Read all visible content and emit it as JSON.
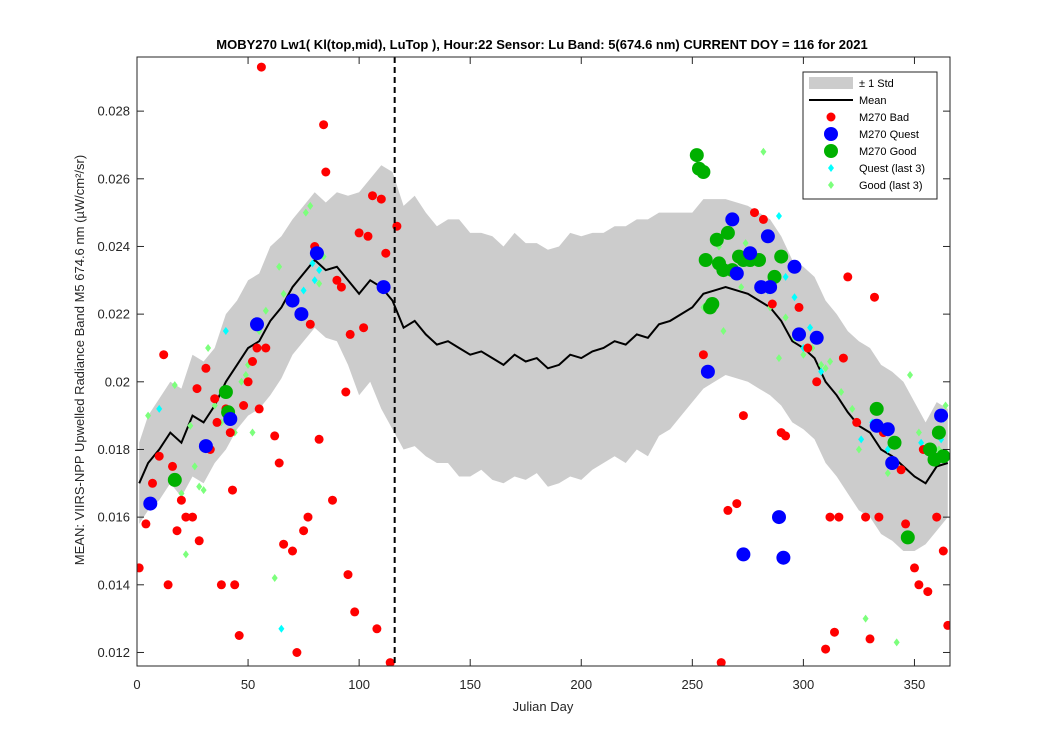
{
  "chart_data": {
    "type": "scatter",
    "title": "MOBY270   Lw1( Kl(top,mid), LuTop ),   Hour:22 Sensor: Lu Band: 5(674.6 nm)   CURRENT DOY = 116 for 2021",
    "xlabel": "Julian Day",
    "ylabel": "MEAN: VIIRS-NPP Upwelled Radiance Band M5 674.6 nm (µW/cm²/sr)",
    "xlim": [
      0,
      366
    ],
    "ylim": [
      0.0116,
      0.0296
    ],
    "xticks": [
      0,
      50,
      100,
      150,
      200,
      250,
      300,
      350
    ],
    "xtick_labels": [
      "0",
      "50",
      "100",
      "150",
      "200",
      "250",
      "300",
      "350"
    ],
    "yticks": [
      0.012,
      0.014,
      0.016,
      0.018,
      0.02,
      0.022,
      0.024,
      0.026,
      0.028
    ],
    "ytick_labels": [
      "0.012",
      "0.014",
      "0.016",
      "0.018",
      "0.02",
      "0.022",
      "0.024",
      "0.026",
      "0.028"
    ],
    "grid": false,
    "legend_position": "top-right",
    "current_doy": 116,
    "legend": [
      {
        "label": "± 1 Std",
        "marker": "patch",
        "color": "#cccccc"
      },
      {
        "label": "Mean",
        "marker": "line",
        "color": "#000000"
      },
      {
        "label": "M270 Bad",
        "marker": "dot",
        "color": "#ff0000"
      },
      {
        "label": "M270 Quest",
        "marker": "dot-large",
        "color": "#0000ff"
      },
      {
        "label": "M270 Good",
        "marker": "dot-large",
        "color": "#00b000"
      },
      {
        "label": "Quest (last 3)",
        "marker": "diamond",
        "color": "#00ffff"
      },
      {
        "label": "Good (last 3)",
        "marker": "diamond",
        "color": "#7cff7c"
      }
    ],
    "mean_series": {
      "name": "Mean",
      "x": [
        1,
        5,
        10,
        15,
        20,
        25,
        30,
        35,
        40,
        45,
        50,
        55,
        60,
        65,
        70,
        75,
        80,
        85,
        90,
        95,
        100,
        105,
        110,
        115,
        120,
        125,
        130,
        135,
        140,
        145,
        150,
        155,
        160,
        165,
        170,
        175,
        180,
        185,
        190,
        195,
        200,
        205,
        210,
        215,
        220,
        225,
        230,
        235,
        240,
        245,
        250,
        255,
        260,
        265,
        270,
        275,
        280,
        285,
        290,
        295,
        300,
        305,
        310,
        315,
        320,
        325,
        330,
        335,
        340,
        345,
        350,
        355,
        360,
        365
      ],
      "y": [
        0.017,
        0.0176,
        0.018,
        0.0185,
        0.0182,
        0.019,
        0.0188,
        0.0193,
        0.02,
        0.0205,
        0.021,
        0.0212,
        0.0218,
        0.0222,
        0.0228,
        0.0232,
        0.0236,
        0.0233,
        0.0234,
        0.023,
        0.0226,
        0.023,
        0.0228,
        0.0224,
        0.0216,
        0.0218,
        0.0214,
        0.0211,
        0.0212,
        0.021,
        0.0208,
        0.0209,
        0.0207,
        0.0205,
        0.0208,
        0.0206,
        0.0207,
        0.0204,
        0.0205,
        0.0208,
        0.0207,
        0.0209,
        0.021,
        0.0212,
        0.0211,
        0.0214,
        0.0213,
        0.0217,
        0.0218,
        0.022,
        0.0222,
        0.0226,
        0.0227,
        0.0228,
        0.0227,
        0.0226,
        0.0224,
        0.0222,
        0.0218,
        0.0212,
        0.021,
        0.0207,
        0.02,
        0.0196,
        0.0191,
        0.0187,
        0.0185,
        0.018,
        0.0178,
        0.0175,
        0.0172,
        0.017,
        0.0175,
        0.0176
      ]
    },
    "std_band": {
      "name": "± 1 Std",
      "x": [
        1,
        5,
        10,
        15,
        20,
        25,
        30,
        35,
        40,
        45,
        50,
        55,
        60,
        65,
        70,
        75,
        80,
        85,
        90,
        95,
        100,
        105,
        110,
        115,
        120,
        125,
        130,
        135,
        140,
        145,
        150,
        155,
        160,
        165,
        170,
        175,
        180,
        185,
        190,
        195,
        200,
        205,
        210,
        215,
        220,
        225,
        230,
        235,
        240,
        245,
        250,
        255,
        260,
        265,
        270,
        275,
        280,
        285,
        290,
        295,
        300,
        305,
        310,
        315,
        320,
        325,
        330,
        335,
        340,
        345,
        350,
        355,
        360,
        365
      ],
      "lower": [
        0.0158,
        0.0162,
        0.0165,
        0.017,
        0.0166,
        0.0172,
        0.017,
        0.0176,
        0.018,
        0.0186,
        0.019,
        0.0192,
        0.0196,
        0.0201,
        0.0208,
        0.0212,
        0.0216,
        0.0213,
        0.0212,
        0.0205,
        0.0196,
        0.02,
        0.0192,
        0.0186,
        0.018,
        0.0181,
        0.0178,
        0.0176,
        0.0176,
        0.0172,
        0.0172,
        0.0174,
        0.0171,
        0.017,
        0.0172,
        0.0171,
        0.0173,
        0.0169,
        0.017,
        0.0172,
        0.0171,
        0.0174,
        0.0176,
        0.0178,
        0.0176,
        0.018,
        0.0178,
        0.0184,
        0.0186,
        0.019,
        0.0194,
        0.0198,
        0.02,
        0.0202,
        0.0201,
        0.02,
        0.0198,
        0.0196,
        0.0193,
        0.0188,
        0.0186,
        0.0183,
        0.0176,
        0.0172,
        0.0167,
        0.0162,
        0.016,
        0.0155,
        0.0153,
        0.015,
        0.015,
        0.0152,
        0.0156,
        0.016
      ],
      "upper": [
        0.0182,
        0.019,
        0.0195,
        0.02,
        0.0198,
        0.0208,
        0.0206,
        0.021,
        0.022,
        0.0224,
        0.023,
        0.0232,
        0.024,
        0.0243,
        0.0248,
        0.0252,
        0.0256,
        0.0253,
        0.0256,
        0.0255,
        0.0256,
        0.026,
        0.0264,
        0.0262,
        0.0252,
        0.0255,
        0.025,
        0.0246,
        0.0248,
        0.0248,
        0.0244,
        0.0244,
        0.0243,
        0.024,
        0.0244,
        0.0241,
        0.0241,
        0.0239,
        0.024,
        0.0244,
        0.0243,
        0.0244,
        0.0244,
        0.0246,
        0.0246,
        0.0248,
        0.0248,
        0.025,
        0.025,
        0.025,
        0.025,
        0.0254,
        0.0254,
        0.0254,
        0.0253,
        0.0252,
        0.025,
        0.0248,
        0.0243,
        0.0236,
        0.0234,
        0.0231,
        0.0224,
        0.022,
        0.0215,
        0.0212,
        0.021,
        0.0205,
        0.0203,
        0.02,
        0.0194,
        0.0188,
        0.0194,
        0.0192
      ]
    },
    "series": [
      {
        "name": "M270 Bad",
        "x": [
          1,
          4,
          7,
          10,
          12,
          14,
          16,
          18,
          20,
          22,
          25,
          27,
          28,
          31,
          33,
          35,
          36,
          38,
          40,
          42,
          43,
          44,
          46,
          48,
          50,
          52,
          54,
          55,
          56,
          58,
          62,
          64,
          66,
          70,
          72,
          75,
          77,
          78,
          80,
          82,
          84,
          85,
          88,
          90,
          92,
          94,
          95,
          96,
          98,
          100,
          102,
          104,
          106,
          108,
          110,
          112,
          114,
          117,
          255,
          263,
          266,
          270,
          273,
          278,
          282,
          286,
          290,
          292,
          298,
          302,
          306,
          310,
          312,
          314,
          316,
          318,
          320,
          324,
          328,
          330,
          332,
          334,
          336,
          340,
          344,
          346,
          350,
          352,
          354,
          356,
          360,
          363,
          365
        ],
        "y": [
          0.0145,
          0.0158,
          0.017,
          0.0178,
          0.0208,
          0.014,
          0.0175,
          0.0156,
          0.0165,
          0.016,
          0.016,
          0.0198,
          0.0153,
          0.0204,
          0.018,
          0.0195,
          0.0188,
          0.014,
          0.0192,
          0.0185,
          0.0168,
          0.014,
          0.0125,
          0.0193,
          0.02,
          0.0206,
          0.021,
          0.0192,
          0.0293,
          0.021,
          0.0184,
          0.0176,
          0.0152,
          0.015,
          0.012,
          0.0156,
          0.016,
          0.0217,
          0.024,
          0.0183,
          0.0276,
          0.0262,
          0.0165,
          0.023,
          0.0228,
          0.0197,
          0.0143,
          0.0214,
          0.0132,
          0.0244,
          0.0216,
          0.0243,
          0.0255,
          0.0127,
          0.0254,
          0.0238,
          0.0117,
          0.0246,
          0.0208,
          0.0117,
          0.0162,
          0.0164,
          0.019,
          0.025,
          0.0248,
          0.0223,
          0.0185,
          0.0184,
          0.0222,
          0.021,
          0.02,
          0.0121,
          0.016,
          0.0126,
          0.016,
          0.0207,
          0.0231,
          0.0188,
          0.016,
          0.0124,
          0.0225,
          0.016,
          0.0185,
          0.0176,
          0.0174,
          0.0158,
          0.0145,
          0.014,
          0.018,
          0.0138,
          0.016,
          0.015,
          0.0128
        ]
      },
      {
        "name": "M270 Quest",
        "x": [
          6,
          31,
          42,
          54,
          70,
          74,
          81,
          111,
          257,
          268,
          270,
          273,
          276,
          281,
          284,
          285,
          289,
          291,
          296,
          298,
          306,
          333,
          338,
          340,
          362
        ],
        "y": [
          0.0164,
          0.0181,
          0.0189,
          0.0217,
          0.0224,
          0.022,
          0.0238,
          0.0228,
          0.0203,
          0.0248,
          0.0232,
          0.0149,
          0.0238,
          0.0228,
          0.0243,
          0.0228,
          0.016,
          0.0148,
          0.0234,
          0.0214,
          0.0213,
          0.0187,
          0.0186,
          0.0176,
          0.019
        ],
        "diam_hint": "large"
      },
      {
        "name": "M270 Good",
        "x": [
          17,
          40,
          41,
          252,
          253,
          255,
          256,
          258,
          259,
          261,
          262,
          264,
          266,
          268,
          271,
          273,
          276,
          280,
          287,
          290,
          333,
          341,
          347,
          357,
          359,
          361,
          363
        ],
        "y": [
          0.0171,
          0.0197,
          0.0191,
          0.0267,
          0.0263,
          0.0262,
          0.0236,
          0.0222,
          0.0223,
          0.0242,
          0.0235,
          0.0233,
          0.0244,
          0.0233,
          0.0237,
          0.0236,
          0.0236,
          0.0236,
          0.0231,
          0.0237,
          0.0192,
          0.0182,
          0.0154,
          0.018,
          0.0177,
          0.0185,
          0.0178
        ]
      },
      {
        "name": "Quest (last 3)",
        "x": [
          10,
          40,
          65,
          75,
          79,
          80,
          82,
          284,
          289,
          292,
          296,
          300,
          303,
          308,
          326,
          331,
          338,
          353,
          362,
          363
        ],
        "y": [
          0.0192,
          0.0215,
          0.0127,
          0.0227,
          0.0235,
          0.023,
          0.0233,
          0.0227,
          0.0249,
          0.0231,
          0.0225,
          0.021,
          0.0216,
          0.0203,
          0.0183,
          0.0188,
          0.018,
          0.0182,
          0.0183,
          0.0189
        ]
      },
      {
        "name": "Good (last 3)",
        "x": [
          5,
          17,
          20,
          22,
          24,
          26,
          28,
          30,
          32,
          35,
          38,
          44,
          47,
          49,
          50,
          52,
          55,
          58,
          62,
          64,
          66,
          76,
          78,
          82,
          84,
          255,
          262,
          264,
          269,
          272,
          274,
          277,
          282,
          285,
          289,
          292,
          296,
          300,
          304,
          308,
          310,
          312,
          317,
          322,
          325,
          328,
          334,
          338,
          342,
          348,
          352,
          356,
          361,
          364
        ],
        "y": [
          0.019,
          0.0199,
          0.0167,
          0.0149,
          0.0187,
          0.0175,
          0.0169,
          0.0168,
          0.021,
          0.0193,
          0.0188,
          0.0185,
          0.02,
          0.0202,
          0.0205,
          0.0185,
          0.0215,
          0.0221,
          0.0142,
          0.0234,
          0.0226,
          0.025,
          0.0252,
          0.0229,
          0.0237,
          0.0222,
          0.024,
          0.0215,
          0.0233,
          0.0228,
          0.0241,
          0.0235,
          0.0268,
          0.0222,
          0.0207,
          0.0219,
          0.0213,
          0.0208,
          0.021,
          0.0205,
          0.0204,
          0.0206,
          0.0197,
          0.0192,
          0.018,
          0.013,
          0.0187,
          0.0173,
          0.0123,
          0.0202,
          0.0185,
          0.018,
          0.018,
          0.0193
        ]
      }
    ]
  }
}
